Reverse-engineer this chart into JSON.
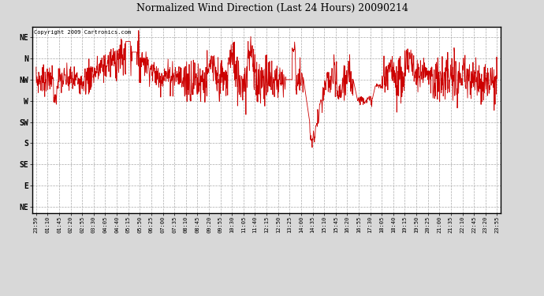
{
  "title": "Normalized Wind Direction (Last 24 Hours) 20090214",
  "copyright_text": "Copyright 2009 Cartronics.com",
  "background_color": "#d8d8d8",
  "plot_bg_color": "#ffffff",
  "line_color": "#cc0000",
  "ytick_labels": [
    "NE",
    "N",
    "NW",
    "W",
    "SW",
    "S",
    "SE",
    "E",
    "NE"
  ],
  "ytick_values": [
    8,
    7,
    6,
    5,
    4,
    3,
    2,
    1,
    0
  ],
  "ylim": [
    -0.3,
    8.5
  ],
  "xtick_labels": [
    "23:59",
    "01:10",
    "01:45",
    "02:20",
    "02:55",
    "03:30",
    "04:05",
    "04:40",
    "05:15",
    "05:50",
    "06:25",
    "07:00",
    "07:35",
    "08:10",
    "08:45",
    "09:20",
    "09:55",
    "10:30",
    "11:05",
    "11:40",
    "12:15",
    "12:50",
    "13:25",
    "14:00",
    "14:35",
    "15:10",
    "15:45",
    "16:20",
    "16:55",
    "17:30",
    "18:05",
    "18:40",
    "19:15",
    "19:50",
    "20:25",
    "21:00",
    "21:35",
    "22:10",
    "22:45",
    "23:20",
    "23:55"
  ],
  "figsize": [
    6.9,
    3.75
  ],
  "dpi": 100
}
